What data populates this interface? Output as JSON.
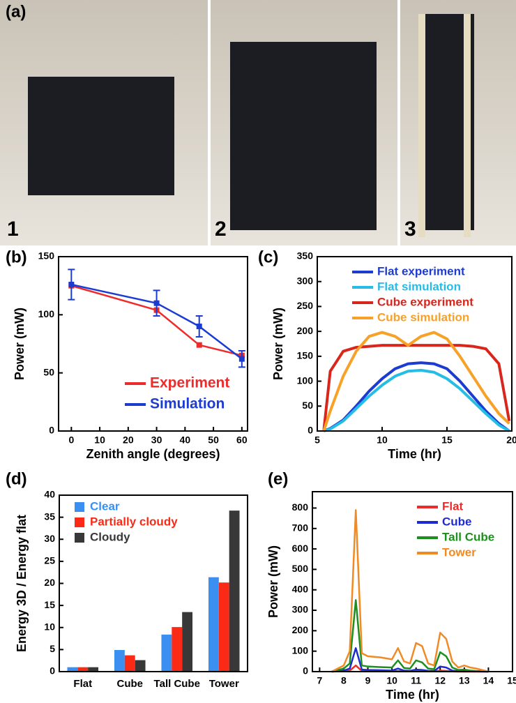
{
  "photos": {
    "panel_label": "(a)",
    "items": [
      "1",
      "2",
      "3"
    ]
  },
  "chart_data": [
    {
      "type": "line",
      "panel_label": "(b)",
      "xlabel": "Zenith angle (degrees)",
      "ylabel": "Power (mW)",
      "x": [
        0,
        30,
        45,
        60
      ],
      "xlim": [
        -4.5,
        62
      ],
      "xticks": [
        0,
        10,
        20,
        30,
        40,
        50,
        60
      ],
      "ylim": [
        0,
        150
      ],
      "yticks": [
        0,
        50,
        100,
        150
      ],
      "markers": true,
      "legend": "lower right",
      "series": [
        {
          "name": "Experiment",
          "color": "#ee2b2b",
          "values": [
            125,
            104,
            74,
            65
          ]
        },
        {
          "name": "Simulation",
          "color": "#1c3bd1",
          "values": [
            126,
            110,
            90,
            62
          ],
          "errors": [
            13,
            11,
            9,
            7
          ]
        }
      ]
    },
    {
      "type": "line",
      "panel_label": "(c)",
      "xlabel": "Time (hr)",
      "ylabel": "Power (mW)",
      "x": [
        5.5,
        6,
        7,
        8,
        9,
        10,
        11,
        12,
        13,
        14,
        15,
        16,
        17,
        18,
        19,
        19.8
      ],
      "xlim": [
        5,
        20
      ],
      "xticks": [
        5,
        10,
        15,
        20
      ],
      "ylim": [
        0,
        350
      ],
      "yticks": [
        0,
        50,
        100,
        150,
        200,
        250,
        300,
        350
      ],
      "legend": "upper center",
      "series": [
        {
          "name": "Flat experiment",
          "color": "#1c3bd1",
          "values": [
            0,
            5,
            22,
            50,
            80,
            105,
            125,
            135,
            137,
            135,
            125,
            100,
            70,
            40,
            15,
            0
          ]
        },
        {
          "name": "Flat simulation",
          "color": "#25bde6",
          "values": [
            0,
            4,
            20,
            45,
            70,
            92,
            110,
            120,
            122,
            118,
            105,
            85,
            60,
            35,
            12,
            0
          ]
        },
        {
          "name": "Cube experiment",
          "color": "#d8261c",
          "values": [
            0,
            120,
            160,
            168,
            170,
            172,
            172,
            172,
            172,
            172,
            172,
            172,
            170,
            165,
            135,
            20
          ]
        },
        {
          "name": "Cube simulation",
          "color": "#f7a128",
          "values": [
            0,
            40,
            110,
            160,
            190,
            198,
            190,
            172,
            190,
            198,
            185,
            150,
            110,
            70,
            35,
            15
          ]
        }
      ]
    },
    {
      "type": "bar",
      "panel_label": "(d)",
      "ylabel": "Energy 3D / Energy flat",
      "categories": [
        "Flat",
        "Cube",
        "Tall Cube",
        "Tower"
      ],
      "ylim": [
        0,
        40
      ],
      "yticks": [
        0,
        5,
        10,
        15,
        20,
        25,
        30,
        35,
        40
      ],
      "legend": "upper left",
      "series": [
        {
          "name": "Clear",
          "color": "#3b8ff0",
          "values": [
            1,
            4.9,
            8.4,
            21.4
          ]
        },
        {
          "name": "Partially cloudy",
          "color": "#fb2a16",
          "values": [
            1,
            3.7,
            10.1,
            20.2
          ]
        },
        {
          "name": "Cloudy",
          "color": "#383838",
          "values": [
            1,
            2.6,
            13.5,
            36.5
          ]
        }
      ]
    },
    {
      "type": "line",
      "panel_label": "(e)",
      "xlabel": "Time (hr)",
      "ylabel": "Power (mW)",
      "x": [
        7.5,
        8,
        8.25,
        8.5,
        8.75,
        9,
        9.5,
        10,
        10.25,
        10.5,
        10.75,
        11,
        11.25,
        11.5,
        11.75,
        12,
        12.25,
        12.5,
        12.75,
        13,
        13.25,
        13.5,
        14
      ],
      "xlim": [
        6.7,
        15
      ],
      "xticks": [
        7,
        8,
        9,
        10,
        11,
        12,
        13,
        14,
        15
      ],
      "ylim": [
        0,
        880
      ],
      "yticks": [
        0,
        100,
        200,
        300,
        400,
        500,
        600,
        700,
        800
      ],
      "legend": "upper right",
      "series": [
        {
          "name": "Flat",
          "color": "#ee2b2b",
          "values": [
            0,
            2,
            5,
            30,
            3,
            2,
            2,
            2,
            3,
            2,
            1,
            2,
            2,
            1,
            1,
            5,
            4,
            1,
            0,
            0,
            0,
            0,
            0
          ]
        },
        {
          "name": "Cube",
          "color": "#1c2bd1",
          "values": [
            0,
            5,
            15,
            115,
            10,
            8,
            7,
            5,
            15,
            5,
            4,
            10,
            8,
            4,
            3,
            25,
            20,
            5,
            2,
            2,
            1,
            1,
            0
          ]
        },
        {
          "name": "Tall Cube",
          "color": "#1e8f1e",
          "values": [
            0,
            15,
            40,
            350,
            30,
            25,
            22,
            20,
            55,
            18,
            15,
            55,
            45,
            15,
            12,
            95,
            75,
            20,
            8,
            10,
            5,
            3,
            0
          ]
        },
        {
          "name": "Tower",
          "color": "#f08a24",
          "values": [
            0,
            30,
            100,
            790,
            90,
            75,
            70,
            60,
            115,
            50,
            40,
            140,
            125,
            40,
            30,
            190,
            160,
            50,
            20,
            30,
            20,
            15,
            0
          ]
        }
      ]
    }
  ]
}
